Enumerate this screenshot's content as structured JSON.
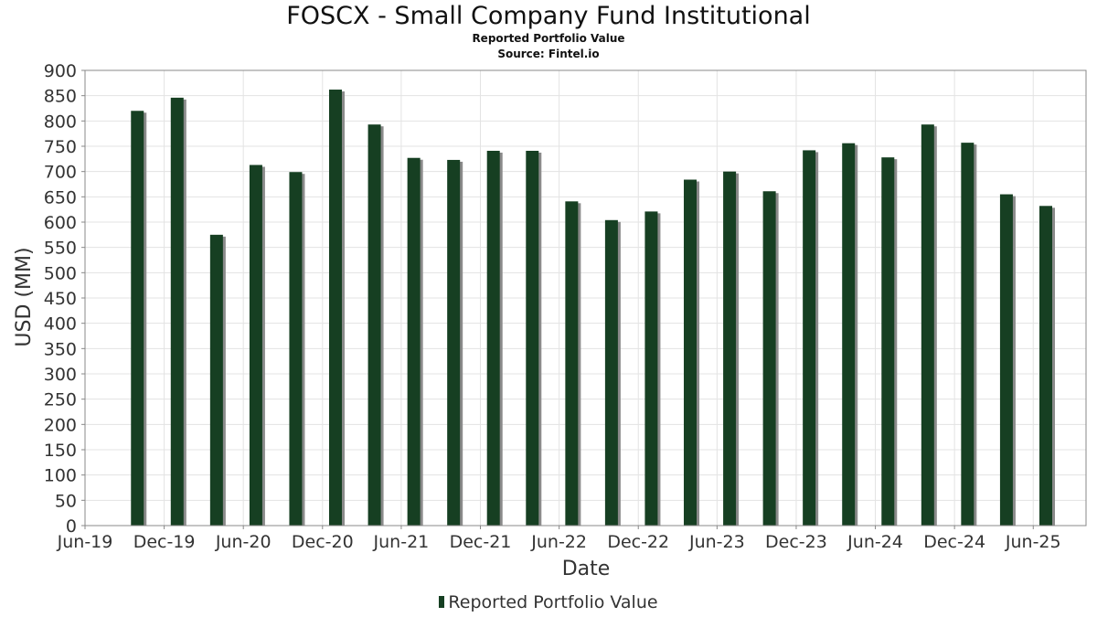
{
  "chart_data": {
    "type": "bar",
    "title": "FOSCX - Small Company Fund Institutional",
    "subtitle": "Reported Portfolio Value",
    "source": "Source: Fintel.io",
    "xlabel": "Date",
    "ylabel": "USD (MM)",
    "ylim": [
      0,
      900
    ],
    "yticks": [
      0,
      50,
      100,
      150,
      200,
      250,
      300,
      350,
      400,
      450,
      500,
      550,
      600,
      650,
      700,
      750,
      800,
      850,
      900
    ],
    "xlim": [
      "2019-06-01",
      "2025-10-01"
    ],
    "xticks": [
      {
        "label": "Jun-19",
        "date": "2019-06-01"
      },
      {
        "label": "Dec-19",
        "date": "2019-12-01"
      },
      {
        "label": "Jun-20",
        "date": "2020-06-01"
      },
      {
        "label": "Dec-20",
        "date": "2020-12-01"
      },
      {
        "label": "Jun-21",
        "date": "2021-06-01"
      },
      {
        "label": "Dec-21",
        "date": "2021-12-01"
      },
      {
        "label": "Jun-22",
        "date": "2022-06-01"
      },
      {
        "label": "Dec-22",
        "date": "2022-12-01"
      },
      {
        "label": "Jun-23",
        "date": "2023-06-01"
      },
      {
        "label": "Dec-23",
        "date": "2023-12-01"
      },
      {
        "label": "Jun-24",
        "date": "2024-06-01"
      },
      {
        "label": "Dec-24",
        "date": "2024-12-01"
      },
      {
        "label": "Jun-25",
        "date": "2025-06-01"
      }
    ],
    "grid": true,
    "legend_position": "bottom-center",
    "series": [
      {
        "name": "Reported Portfolio Value",
        "color": "#163f22",
        "points": [
          {
            "date": "2019-09-30",
            "value": 820
          },
          {
            "date": "2019-12-31",
            "value": 846
          },
          {
            "date": "2020-03-31",
            "value": 575
          },
          {
            "date": "2020-06-30",
            "value": 713
          },
          {
            "date": "2020-09-30",
            "value": 699
          },
          {
            "date": "2020-12-31",
            "value": 862
          },
          {
            "date": "2021-03-31",
            "value": 793
          },
          {
            "date": "2021-06-30",
            "value": 727
          },
          {
            "date": "2021-09-30",
            "value": 723
          },
          {
            "date": "2021-12-31",
            "value": 741
          },
          {
            "date": "2022-03-31",
            "value": 741
          },
          {
            "date": "2022-06-30",
            "value": 641
          },
          {
            "date": "2022-09-30",
            "value": 604
          },
          {
            "date": "2022-12-31",
            "value": 621
          },
          {
            "date": "2023-03-31",
            "value": 684
          },
          {
            "date": "2023-06-30",
            "value": 700
          },
          {
            "date": "2023-09-30",
            "value": 661
          },
          {
            "date": "2023-12-31",
            "value": 742
          },
          {
            "date": "2024-03-31",
            "value": 756
          },
          {
            "date": "2024-06-30",
            "value": 728
          },
          {
            "date": "2024-09-30",
            "value": 793
          },
          {
            "date": "2024-12-31",
            "value": 757
          },
          {
            "date": "2025-03-31",
            "value": 655
          },
          {
            "date": "2025-06-30",
            "value": 632
          }
        ]
      }
    ]
  }
}
